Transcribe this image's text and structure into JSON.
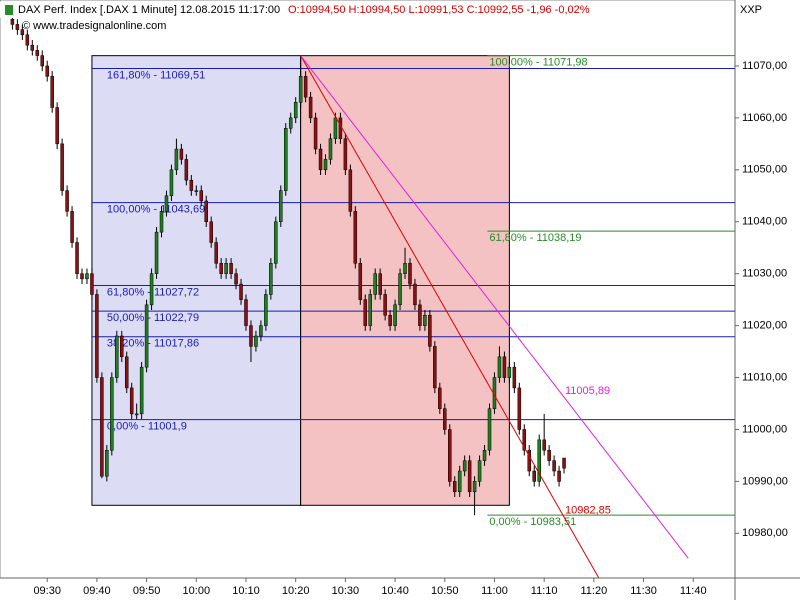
{
  "chart_data": {
    "type": "candlestick",
    "title": "DAX Perf. Index [.DAX  1 Minute] 12.08.2015 11:17:00",
    "quote": "O:10994,50 H:10994,50 L:10991,53 C:10992,55 -1,96 -0,02%",
    "source": "© www.tradesignalonline.com",
    "axis_label": "XXP",
    "up_color": "#1d7f1d",
    "down_color": "#8b1010",
    "xlim": [
      560.5,
      708.4
    ],
    "ylim": [
      10971.4,
      11082.7
    ],
    "xticks": [
      {
        "value": 570,
        "label": "09:30"
      },
      {
        "value": 580,
        "label": "09:40"
      },
      {
        "value": 590,
        "label": "09:50"
      },
      {
        "value": 600,
        "label": "10:00"
      },
      {
        "value": 610,
        "label": "10:10"
      },
      {
        "value": 620,
        "label": "10:20"
      },
      {
        "value": 630,
        "label": "10:30"
      },
      {
        "value": 640,
        "label": "10:40"
      },
      {
        "value": 650,
        "label": "10:50"
      },
      {
        "value": 660,
        "label": "11:00"
      },
      {
        "value": 670,
        "label": "11:10"
      },
      {
        "value": 680,
        "label": "11:20"
      },
      {
        "value": 690,
        "label": "11:30"
      },
      {
        "value": 700,
        "label": "11:40"
      }
    ],
    "yticks": [
      {
        "value": 10980,
        "label": "10980,00"
      },
      {
        "value": 10990,
        "label": "10990,00"
      },
      {
        "value": 11000,
        "label": "11000,00"
      },
      {
        "value": 11010,
        "label": "11010,00"
      },
      {
        "value": 11020,
        "label": "11020,00"
      },
      {
        "value": 11030,
        "label": "11030,00"
      },
      {
        "value": 11040,
        "label": "11040,00"
      },
      {
        "value": 11050,
        "label": "11050,00"
      },
      {
        "value": 11060,
        "label": "11060,00"
      },
      {
        "value": 11070,
        "label": "11070,00"
      }
    ],
    "x": [
      "09:23",
      "09:24",
      "09:25",
      "09:26",
      "09:27",
      "09:28",
      "09:29",
      "09:30",
      "09:31",
      "09:32",
      "09:33",
      "09:34",
      "09:35",
      "09:36",
      "09:37",
      "09:38",
      "09:39",
      "09:40",
      "09:41",
      "09:42",
      "09:43",
      "09:44",
      "09:45",
      "09:46",
      "09:47",
      "09:48",
      "09:49",
      "09:50",
      "09:51",
      "09:52",
      "09:53",
      "09:54",
      "09:55",
      "09:56",
      "09:57",
      "09:58",
      "09:59",
      "10:00",
      "10:01",
      "10:02",
      "10:03",
      "10:04",
      "10:05",
      "10:06",
      "10:07",
      "10:08",
      "10:09",
      "10:10",
      "10:11",
      "10:12",
      "10:13",
      "10:14",
      "10:15",
      "10:16",
      "10:17",
      "10:18",
      "10:19",
      "10:20",
      "10:21",
      "10:22",
      "10:23",
      "10:24",
      "10:25",
      "10:26",
      "10:27",
      "10:28",
      "10:29",
      "10:30",
      "10:31",
      "10:32",
      "10:33",
      "10:34",
      "10:35",
      "10:36",
      "10:37",
      "10:38",
      "10:39",
      "10:40",
      "10:41",
      "10:42",
      "10:43",
      "10:44",
      "10:45",
      "10:46",
      "10:47",
      "10:48",
      "10:49",
      "10:50",
      "10:51",
      "10:52",
      "10:53",
      "10:54",
      "10:55",
      "10:56",
      "10:57",
      "10:58",
      "10:59",
      "11:00",
      "11:01",
      "11:02",
      "11:03",
      "11:04",
      "11:05",
      "11:06",
      "11:07",
      "11:08",
      "11:09",
      "11:10",
      "11:11",
      "11:12",
      "11:13",
      "11:14"
    ],
    "ohlc": [
      [
        11079,
        11081,
        11077,
        11078
      ],
      [
        11078,
        11079,
        11076,
        11077
      ],
      [
        11077,
        11078,
        11075,
        11076
      ],
      [
        11076,
        11077,
        11073,
        11074
      ],
      [
        11074,
        11075,
        11072,
        11073
      ],
      [
        11073,
        11074,
        11071,
        11072
      ],
      [
        11072,
        11073,
        11069,
        11070
      ],
      [
        11070,
        11071,
        11067,
        11068
      ],
      [
        11068,
        11069,
        11061,
        11062
      ],
      [
        11062,
        11063,
        11054,
        11055
      ],
      [
        11055,
        11056,
        11045,
        11046
      ],
      [
        11046,
        11047,
        11041,
        11042
      ],
      [
        11042,
        11043,
        11035,
        11036
      ],
      [
        11036,
        11037,
        11029,
        11030
      ],
      [
        11030,
        11031,
        11028,
        11029
      ],
      [
        11029,
        11031,
        11028,
        11030
      ],
      [
        11030,
        11031,
        11025,
        11026
      ],
      [
        11026,
        11027,
        11009,
        11010
      ],
      [
        11010,
        11011,
        10990.6,
        10991
      ],
      [
        10991,
        10997,
        10990,
        10996
      ],
      [
        10996,
        11011,
        10995,
        11010
      ],
      [
        11010,
        11019,
        11009,
        11018
      ],
      [
        11018,
        11019,
        11013,
        11014
      ],
      [
        11014,
        11015,
        11007,
        11008
      ],
      [
        11008,
        11009,
        11002,
        11003
      ],
      [
        11003,
        11005,
        11002,
        11003
      ],
      [
        11003,
        11013,
        11002,
        11012
      ],
      [
        11012,
        11025,
        11011,
        11024
      ],
      [
        11024,
        11031,
        11023,
        11030
      ],
      [
        11030,
        11039,
        11029,
        11038
      ],
      [
        11038,
        11043,
        11037,
        11042
      ],
      [
        11042,
        11046,
        11041,
        11045
      ],
      [
        11045,
        11051,
        11044,
        11050
      ],
      [
        11050,
        11056,
        11049,
        11054
      ],
      [
        11054,
        11055,
        11051,
        11052
      ],
      [
        11052,
        11053,
        11047,
        11048
      ],
      [
        11048,
        11049,
        11045,
        11046
      ],
      [
        11046,
        11047,
        11045,
        11046
      ],
      [
        11046,
        11047,
        11043,
        11044
      ],
      [
        11044,
        11045,
        11039,
        11040
      ],
      [
        11040,
        11041,
        11035,
        11036
      ],
      [
        11036,
        11037,
        11031,
        11032
      ],
      [
        11032,
        11033,
        11029,
        11030
      ],
      [
        11030,
        11033,
        11029,
        11032
      ],
      [
        11032,
        11033,
        11029,
        11030
      ],
      [
        11030,
        11031,
        11027,
        11028
      ],
      [
        11028,
        11029,
        11024,
        11025
      ],
      [
        11025,
        11026,
        11019,
        11020
      ],
      [
        11020,
        11021,
        11013,
        11016
      ],
      [
        11016,
        11019,
        11015,
        11018
      ],
      [
        11018,
        11021,
        11017,
        11020
      ],
      [
        11020,
        11027,
        11019,
        11026
      ],
      [
        11026,
        11033,
        11025,
        11032
      ],
      [
        11032,
        11041,
        11031,
        11040
      ],
      [
        11040,
        11047,
        11039,
        11046
      ],
      [
        11046,
        11059,
        11045,
        11058
      ],
      [
        11058,
        11061,
        11057,
        11060
      ],
      [
        11060,
        11064,
        11059,
        11063
      ],
      [
        11063,
        11071.98,
        11062,
        11068
      ],
      [
        11068,
        11069,
        11063,
        11064
      ],
      [
        11064,
        11065,
        11059,
        11060
      ],
      [
        11060,
        11061,
        11053,
        11054
      ],
      [
        11054,
        11055,
        11049,
        11050
      ],
      [
        11050,
        11053,
        11049,
        11052
      ],
      [
        11052,
        11057,
        11051,
        11056
      ],
      [
        11056,
        11061,
        11055,
        11060
      ],
      [
        11060,
        11061,
        11055,
        11056
      ],
      [
        11056,
        11057,
        11049,
        11050
      ],
      [
        11050,
        11051,
        11041,
        11042
      ],
      [
        11042,
        11043,
        11031,
        11032
      ],
      [
        11032,
        11033,
        11024,
        11025
      ],
      [
        11025,
        11026,
        11019,
        11020
      ],
      [
        11020,
        11027,
        11019,
        11026
      ],
      [
        11026,
        11031,
        11025,
        11030
      ],
      [
        11030,
        11031,
        11025,
        11026
      ],
      [
        11026,
        11027,
        11021,
        11022
      ],
      [
        11022,
        11023,
        11019,
        11020
      ],
      [
        11020,
        11025,
        11019,
        11024
      ],
      [
        11024,
        11031,
        11023,
        11030
      ],
      [
        11030,
        11035,
        11029,
        11032
      ],
      [
        11032,
        11033,
        11027,
        11028
      ],
      [
        11028,
        11029,
        11023,
        11024
      ],
      [
        11024,
        11025,
        11019,
        11020
      ],
      [
        11020,
        11023,
        11019,
        11022
      ],
      [
        11022,
        11023,
        11015,
        11016
      ],
      [
        11016,
        11017,
        11007,
        11008
      ],
      [
        11008,
        11009,
        11003,
        11004
      ],
      [
        11004,
        11005,
        10999,
        11000
      ],
      [
        11000,
        11001,
        10989,
        10990
      ],
      [
        10990,
        10991,
        10987,
        10988
      ],
      [
        10988,
        10993,
        10987,
        10992
      ],
      [
        10992,
        10995,
        10991,
        10994
      ],
      [
        10994,
        10995,
        10987,
        10988
      ],
      [
        10988,
        10991,
        10983.51,
        10990
      ],
      [
        10990,
        10995,
        10989,
        10994
      ],
      [
        10994,
        10997,
        10993,
        10996
      ],
      [
        10996,
        11005,
        10995,
        11004
      ],
      [
        11004,
        11011,
        11003,
        11010
      ],
      [
        11010,
        11016,
        11009,
        11014
      ],
      [
        11014,
        11015,
        11009,
        11010
      ],
      [
        11010,
        11013,
        11009,
        11012
      ],
      [
        11012,
        11013,
        11007,
        11008
      ],
      [
        11008,
        11009,
        10999,
        11000
      ],
      [
        11000,
        11001,
        10995,
        10996
      ],
      [
        10996,
        10997,
        10991,
        10992
      ],
      [
        10992,
        10993,
        10989,
        10990
      ],
      [
        10990,
        10999,
        10989,
        10998
      ],
      [
        10998,
        11003,
        10995,
        10996
      ],
      [
        10996,
        10997,
        10993,
        10994
      ],
      [
        10994,
        10995,
        10991,
        10992
      ],
      [
        10992,
        10993,
        10989,
        10990
      ],
      [
        10994.5,
        10994.5,
        10991.53,
        10992.55
      ]
    ],
    "boxes": [
      {
        "x": [
          "09:39",
          "10:21"
        ],
        "y": [
          10985.4,
          11071.98
        ],
        "color": "#dcdcf4"
      },
      {
        "x": [
          "10:21",
          "11:03"
        ],
        "y": [
          10985.4,
          11071.98
        ],
        "color": "#f4c2c2"
      }
    ],
    "fib_blue": {
      "color": "#1c1cb0",
      "levels": [
        {
          "value": 11069.51,
          "label": "161,80% - 11069,51"
        },
        {
          "value": 11043.69,
          "label": "100,00% - 11043,69"
        },
        {
          "value": 11027.72,
          "label": "61,80% - 11027,72"
        },
        {
          "value": 11022.79,
          "label": "50,00% - 11022,79"
        },
        {
          "value": 11017.86,
          "label": "38,20% - 11017,86"
        },
        {
          "value": 11001.9,
          "label": "0,00% - 11001,9"
        }
      ]
    },
    "fib_green": {
      "color": "#2a8a2a",
      "levels": [
        {
          "value": 11071.98,
          "label": "100,00% - 11071,98"
        },
        {
          "value": 11038.19,
          "label": "61,80% - 11038,19"
        },
        {
          "value": 10983.51,
          "label": "0,00% - 10983,51"
        }
      ]
    },
    "trendlines": [
      {
        "color": "#e00000",
        "x": [
          "10:21",
          "11:21"
        ],
        "values": [
          11071.98,
          10971.4
        ],
        "mark": {
          "value": 10982.85,
          "label": "10982,85"
        }
      },
      {
        "color": "#e020e0",
        "x": [
          "10:21",
          "11:39"
        ],
        "values": [
          11071.98,
          10975.2
        ],
        "mark": {
          "value": 11005.89,
          "label": "11005,89"
        }
      }
    ]
  }
}
